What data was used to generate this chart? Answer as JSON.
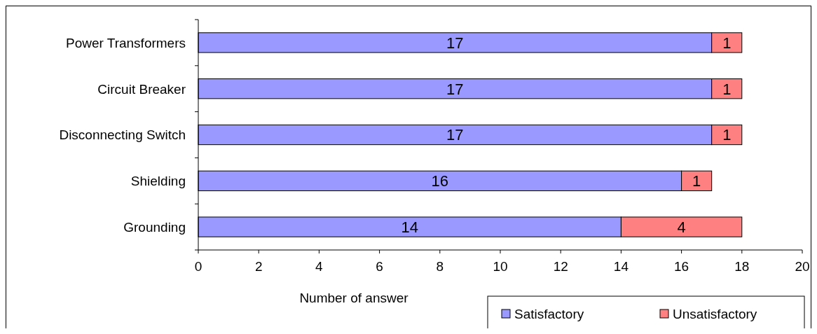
{
  "chart_data": {
    "type": "bar",
    "orientation": "horizontal",
    "stacked": true,
    "xlabel": "Number of answer",
    "categories": [
      "Power Transformers",
      "Circuit Breaker",
      "Disconnecting Switch",
      "Shielding",
      "Grounding"
    ],
    "series": [
      {
        "name": "Satisfactory",
        "color": "#9999ff",
        "values": [
          17,
          17,
          17,
          16,
          14
        ]
      },
      {
        "name": "Unsatisfactory",
        "color": "#ff8080",
        "values": [
          1,
          1,
          1,
          1,
          4
        ]
      }
    ],
    "xlim": [
      0,
      20
    ],
    "xticks": [
      0,
      2,
      4,
      6,
      8,
      10,
      12,
      14,
      16,
      18,
      20
    ],
    "grid": false,
    "legend": "bottom right",
    "data_labels": true
  }
}
